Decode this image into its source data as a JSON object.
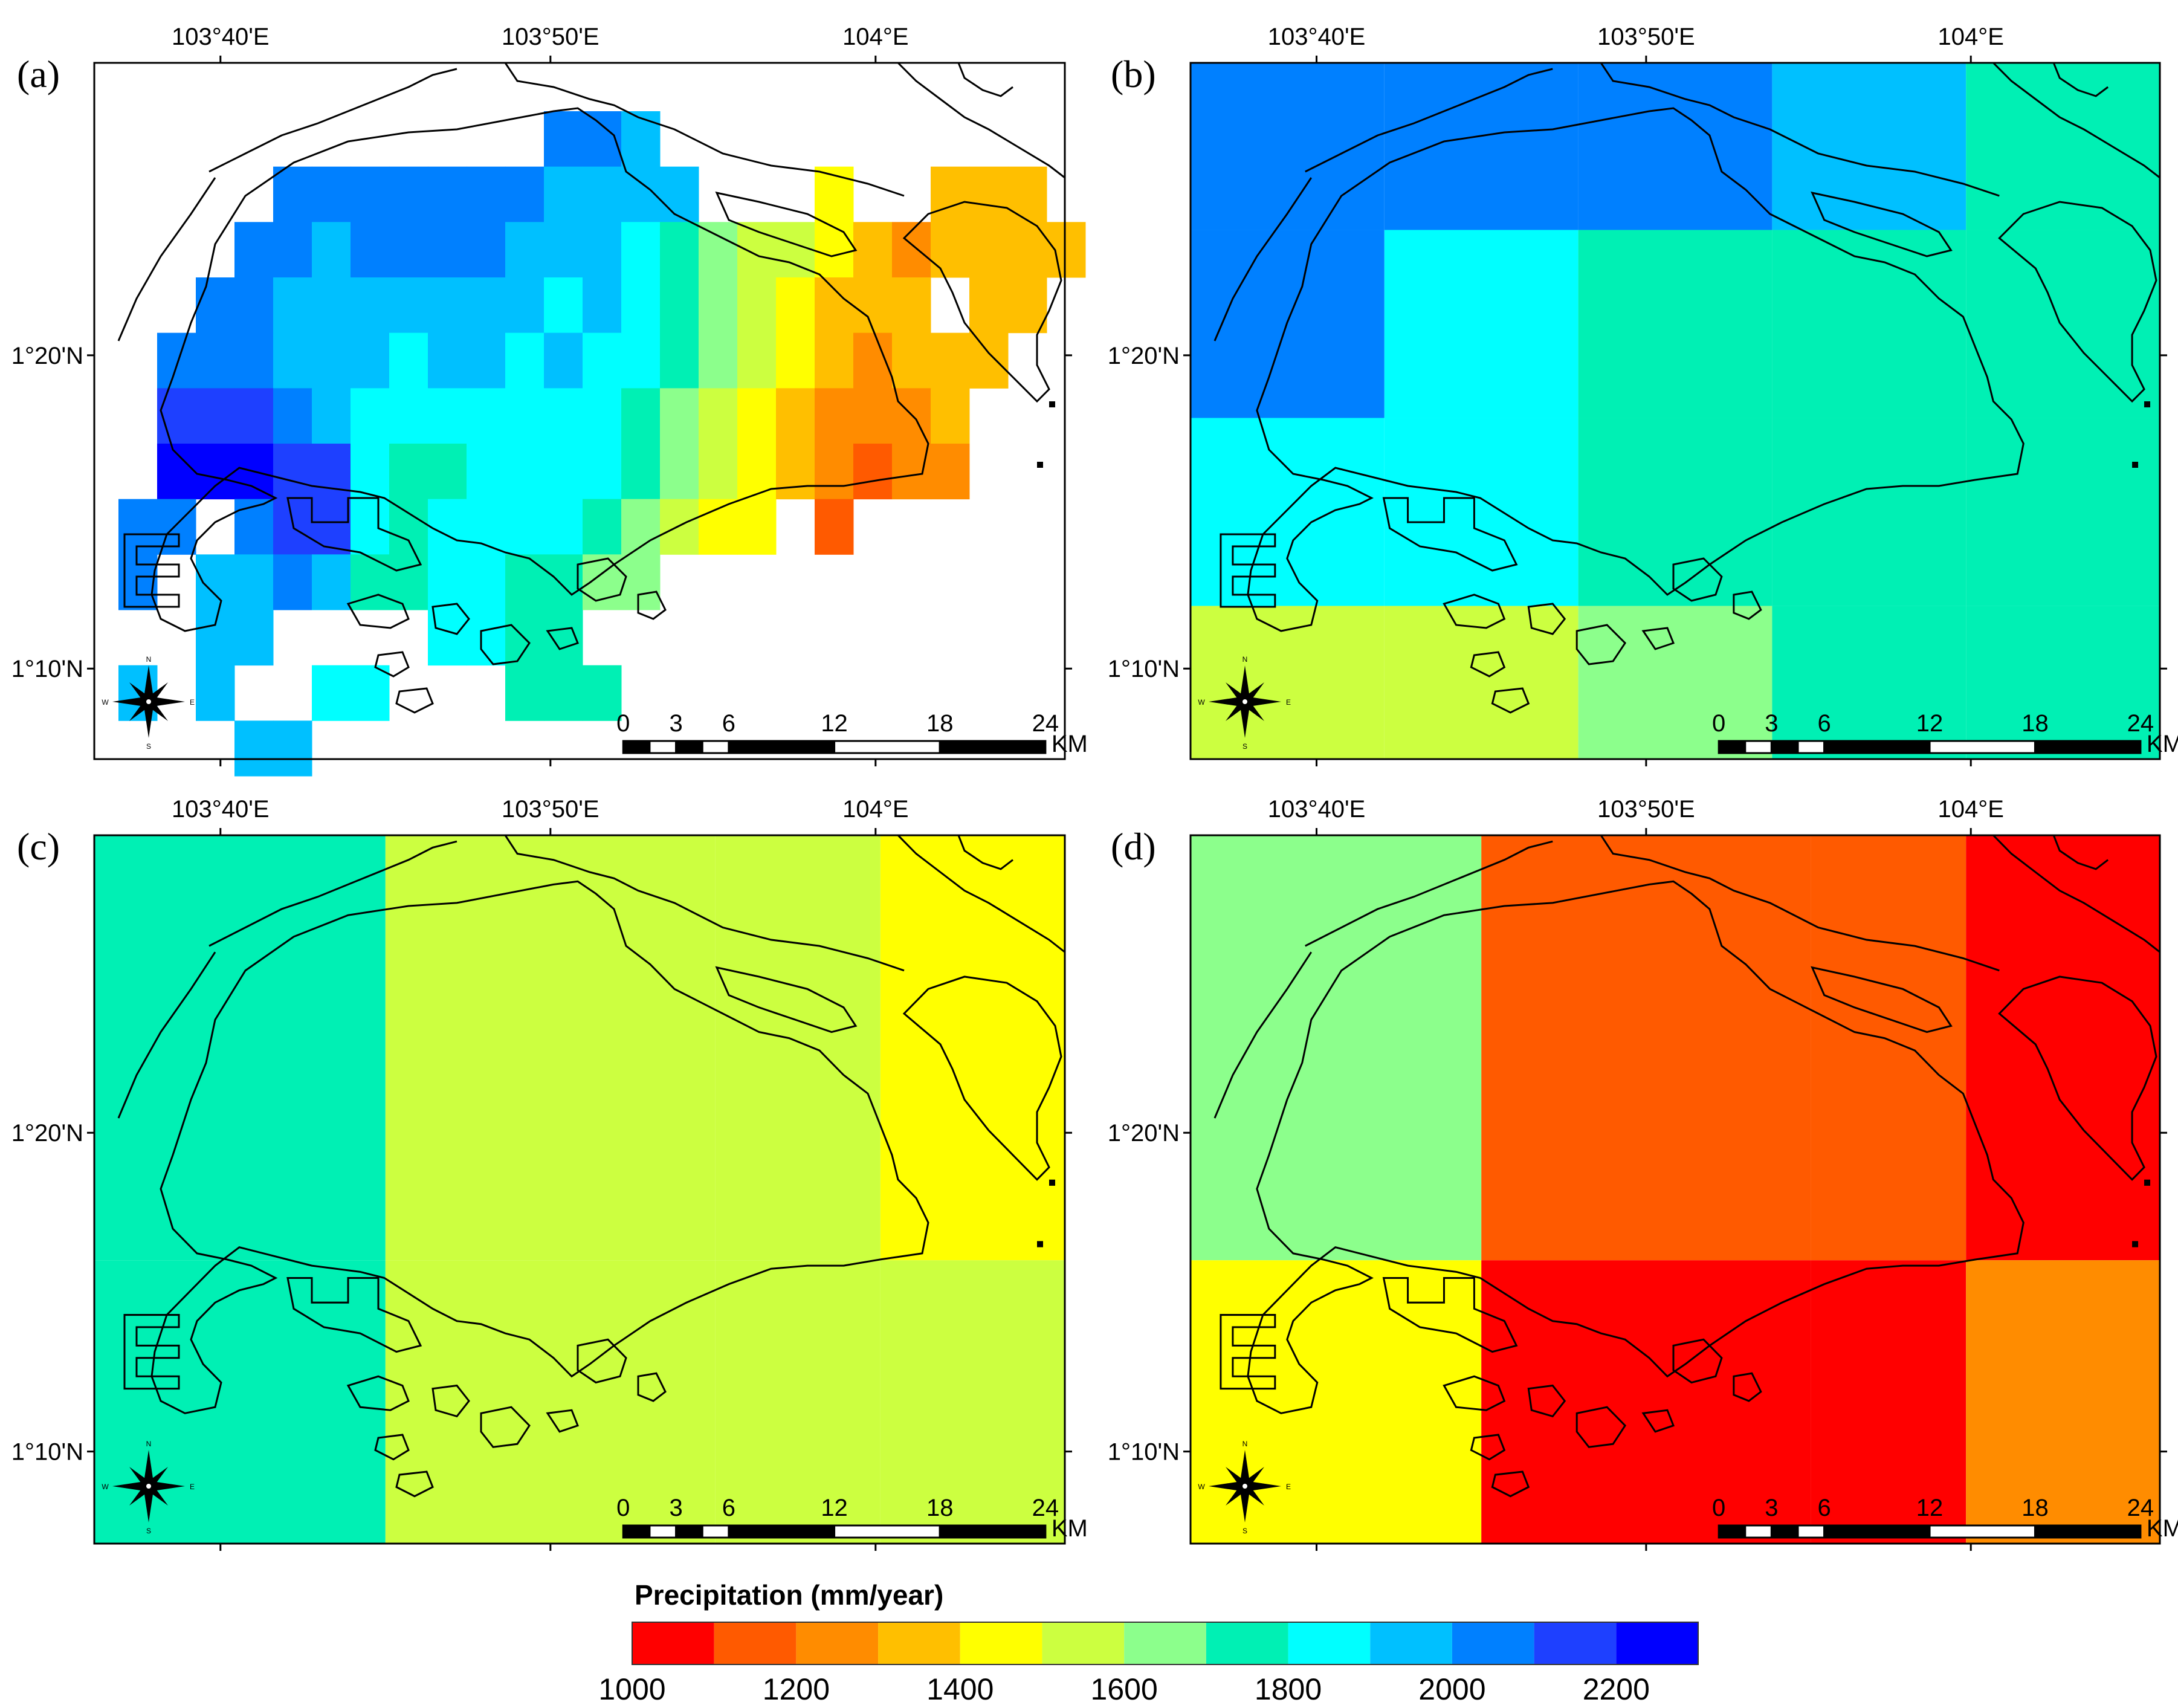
{
  "figure": {
    "legend": {
      "title": "Precipitation (mm/year)",
      "classes": [
        {
          "color": "#ff0000"
        },
        {
          "color": "#ff5a00"
        },
        {
          "color": "#ff8c00"
        },
        {
          "color": "#ffbf00"
        },
        {
          "color": "#ffff00"
        },
        {
          "color": "#ccff40"
        },
        {
          "color": "#8cff8c"
        },
        {
          "color": "#00f0b4"
        },
        {
          "color": "#00ffff"
        },
        {
          "color": "#00c0ff"
        },
        {
          "color": "#0080ff"
        },
        {
          "color": "#1e40ff"
        },
        {
          "color": "#0000ff"
        }
      ],
      "tick_labels": [
        "1000",
        "1200",
        "1400",
        "1600",
        "1800",
        "2000",
        "2200"
      ],
      "tick_values": [
        1000,
        1200,
        1400,
        1600,
        1800,
        2000,
        2200
      ],
      "range": [
        1000,
        2300
      ]
    },
    "axes": {
      "lon_labels": [
        "103°40'E",
        "103°50'E",
        "104°E"
      ],
      "lat_labels": [
        "1°20'N",
        "1°10'N"
      ]
    },
    "scale_bar": {
      "labels": [
        "0",
        "3",
        "6",
        "12",
        "18",
        "24"
      ],
      "unit": "KM"
    },
    "compass": {
      "n": "N",
      "s": "S",
      "e": "E",
      "w": "W"
    },
    "panels": [
      {
        "label": "(a)",
        "kind": "high-resolution grid",
        "value_rows": [
          [
            null,
            null,
            null,
            null,
            null,
            null,
            null,
            null,
            null,
            null,
            null,
            2000,
            2000,
            1900,
            null,
            null,
            null,
            null,
            null,
            null,
            null,
            null,
            null,
            null,
            null
          ],
          [
            null,
            null,
            null,
            null,
            2050,
            2050,
            2000,
            2050,
            2000,
            2050,
            2050,
            1950,
            1950,
            1900,
            1950,
            null,
            null,
            null,
            1450,
            null,
            null,
            1350,
            1350,
            1350,
            null
          ],
          [
            null,
            null,
            null,
            2050,
            2050,
            1950,
            2050,
            2000,
            2050,
            2000,
            1950,
            1900,
            1900,
            1850,
            1750,
            1650,
            1550,
            1500,
            1400,
            1300,
            1250,
            1300,
            1350,
            1350,
            1350
          ],
          [
            null,
            null,
            2000,
            2050,
            1950,
            1950,
            1950,
            1900,
            1950,
            1950,
            1900,
            1850,
            1900,
            1800,
            1700,
            1600,
            1550,
            1450,
            1350,
            1300,
            1350,
            null,
            1350,
            1350,
            null
          ],
          [
            null,
            2050,
            2050,
            2000,
            1950,
            1900,
            1900,
            1850,
            1900,
            1900,
            1800,
            1900,
            1850,
            1800,
            1700,
            1600,
            1500,
            1400,
            1300,
            1250,
            1300,
            1350,
            1350,
            null,
            null
          ],
          [
            null,
            2150,
            2150,
            2100,
            2050,
            1950,
            1850,
            1800,
            1850,
            1800,
            1800,
            1850,
            1800,
            1750,
            1650,
            1550,
            1450,
            1350,
            1250,
            1200,
            1250,
            1300,
            null,
            null,
            null
          ],
          [
            null,
            2200,
            2250,
            2200,
            2150,
            2100,
            1800,
            1750,
            1750,
            1800,
            1850,
            1850,
            1800,
            1700,
            1600,
            1500,
            1450,
            1300,
            1200,
            1150,
            1200,
            1250,
            null,
            null,
            null
          ],
          [
            2000,
            2000,
            null,
            2050,
            2100,
            2150,
            1800,
            1750,
            1800,
            1850,
            1850,
            1850,
            1750,
            1650,
            1550,
            1450,
            1400,
            null,
            1150,
            null,
            null,
            null,
            null,
            null,
            null
          ],
          [
            2000,
            null,
            1900,
            1950,
            2000,
            1950,
            1750,
            1750,
            1800,
            1800,
            1750,
            1700,
            1650,
            1600,
            null,
            null,
            null,
            null,
            null,
            null,
            null,
            null,
            null,
            null,
            null
          ],
          [
            null,
            null,
            1900,
            1900,
            null,
            null,
            null,
            null,
            1800,
            1800,
            1750,
            1700,
            null,
            null,
            null,
            null,
            null,
            null,
            null,
            null,
            null,
            null,
            null,
            null,
            null
          ],
          [
            1950,
            null,
            1900,
            null,
            null,
            1850,
            1850,
            null,
            null,
            null,
            1750,
            1750,
            1750,
            null,
            null,
            null,
            null,
            null,
            null,
            null,
            null,
            null,
            null,
            null,
            null
          ],
          [
            null,
            null,
            null,
            1900,
            1900,
            null,
            null,
            null,
            null,
            null,
            null,
            null,
            null,
            null,
            null,
            null,
            null,
            null,
            null,
            null,
            null,
            null,
            null,
            null,
            null
          ]
        ]
      },
      {
        "label": "(b)",
        "kind": "coarse grid",
        "value_rows": [
          [
            2050,
            2000,
            2000,
            1900,
            1750
          ],
          [
            2000,
            1850,
            1750,
            1750,
            1750
          ],
          [
            1850,
            1850,
            1750,
            1750,
            1750
          ],
          [
            1550,
            1550,
            1650,
            1750,
            1750
          ]
        ]
      },
      {
        "label": "(c)",
        "kind": "coarse grid",
        "value_rows": [
          [
            1750,
            1550,
            1550,
            1450
          ],
          [
            1750,
            1550,
            1550,
            1550
          ]
        ]
      },
      {
        "label": "(d)",
        "kind": "coarse grid",
        "value_rows": [
          [
            1650,
            1150,
            1150,
            1050
          ],
          [
            1450,
            1050,
            1050,
            1250
          ]
        ]
      }
    ]
  }
}
